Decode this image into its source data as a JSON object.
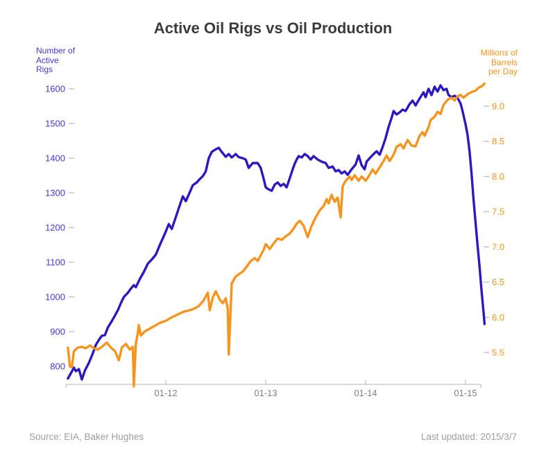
{
  "title": "Active Oil Rigs vs Oil Production",
  "footer": {
    "source": "Source: EIA, Baker Hughes",
    "last_updated": "Last updated: 2015/3/7"
  },
  "left_axis": {
    "label_lines": [
      "Number of",
      "Active",
      "Rigs"
    ],
    "text_color": "#4736d8",
    "ticks": [
      {
        "label": "800",
        "value": 800
      },
      {
        "label": "900",
        "value": 900
      },
      {
        "label": "1000",
        "value": 1000
      },
      {
        "label": "1100",
        "value": 1100
      },
      {
        "label": "1200",
        "value": 1200
      },
      {
        "label": "1300",
        "value": 1300
      },
      {
        "label": "1400",
        "value": 1400
      },
      {
        "label": "1500",
        "value": 1500
      },
      {
        "label": "1600",
        "value": 1600
      }
    ]
  },
  "right_axis": {
    "label_lines": [
      "Millions of",
      "Barrels",
      "per Day"
    ],
    "text_color": "#f7941e",
    "ticks": [
      {
        "label": "5.5",
        "value": 5.5
      },
      {
        "label": "6.0",
        "value": 6.0
      },
      {
        "label": "6.5",
        "value": 6.5
      },
      {
        "label": "7.0",
        "value": 7.0
      },
      {
        "label": "7.5",
        "value": 7.5
      },
      {
        "label": "8.0",
        "value": 8.0
      },
      {
        "label": "8.5",
        "value": 8.5
      },
      {
        "label": "9.0",
        "value": 9.0
      }
    ]
  },
  "x_axis": {
    "text_color": "#7f7f7f",
    "line_color": "#c2c2c2",
    "ticks": [
      {
        "label": "01-12",
        "year": 2012
      },
      {
        "label": "01-13",
        "year": 2013
      },
      {
        "label": "01-14",
        "year": 2014
      },
      {
        "label": "01-15",
        "year": 2015
      }
    ]
  },
  "chart_data": {
    "type": "line",
    "title": "Active Oil Rigs vs Oil Production",
    "x_unit": "decimal_year",
    "x_range": [
      2011.0,
      2015.2
    ],
    "grid": false,
    "legend_position": "none",
    "series": [
      {
        "name": "Number of Active Rigs",
        "axis": "left",
        "color": "#2c17c0",
        "ylim": [
          800,
          1600
        ],
        "points": [
          [
            2011.02,
            765
          ],
          [
            2011.05,
            780
          ],
          [
            2011.08,
            796
          ],
          [
            2011.1,
            786
          ],
          [
            2011.13,
            792
          ],
          [
            2011.16,
            762
          ],
          [
            2011.19,
            788
          ],
          [
            2011.23,
            810
          ],
          [
            2011.27,
            838
          ],
          [
            2011.3,
            862
          ],
          [
            2011.33,
            876
          ],
          [
            2011.36,
            888
          ],
          [
            2011.39,
            890
          ],
          [
            2011.42,
            912
          ],
          [
            2011.45,
            926
          ],
          [
            2011.49,
            946
          ],
          [
            2011.52,
            962
          ],
          [
            2011.55,
            982
          ],
          [
            2011.58,
            1000
          ],
          [
            2011.62,
            1012
          ],
          [
            2011.65,
            1024
          ],
          [
            2011.68,
            1034
          ],
          [
            2011.7,
            1028
          ],
          [
            2011.74,
            1052
          ],
          [
            2011.78,
            1072
          ],
          [
            2011.82,
            1096
          ],
          [
            2011.86,
            1108
          ],
          [
            2011.9,
            1122
          ],
          [
            2011.94,
            1150
          ],
          [
            2011.99,
            1182
          ],
          [
            2012.03,
            1210
          ],
          [
            2012.06,
            1196
          ],
          [
            2012.1,
            1230
          ],
          [
            2012.13,
            1256
          ],
          [
            2012.17,
            1290
          ],
          [
            2012.2,
            1276
          ],
          [
            2012.24,
            1302
          ],
          [
            2012.27,
            1322
          ],
          [
            2012.31,
            1330
          ],
          [
            2012.34,
            1340
          ],
          [
            2012.37,
            1348
          ],
          [
            2012.4,
            1362
          ],
          [
            2012.43,
            1400
          ],
          [
            2012.46,
            1418
          ],
          [
            2012.49,
            1424
          ],
          [
            2012.53,
            1430
          ],
          [
            2012.56,
            1418
          ],
          [
            2012.6,
            1404
          ],
          [
            2012.63,
            1412
          ],
          [
            2012.66,
            1402
          ],
          [
            2012.7,
            1412
          ],
          [
            2012.73,
            1403
          ],
          [
            2012.77,
            1400
          ],
          [
            2012.8,
            1396
          ],
          [
            2012.83,
            1372
          ],
          [
            2012.87,
            1386
          ],
          [
            2012.92,
            1386
          ],
          [
            2012.95,
            1372
          ],
          [
            2012.98,
            1340
          ],
          [
            2013.0,
            1316
          ],
          [
            2013.03,
            1310
          ],
          [
            2013.06,
            1306
          ],
          [
            2013.09,
            1324
          ],
          [
            2013.12,
            1330
          ],
          [
            2013.15,
            1320
          ],
          [
            2013.18,
            1326
          ],
          [
            2013.21,
            1316
          ],
          [
            2013.24,
            1342
          ],
          [
            2013.27,
            1368
          ],
          [
            2013.29,
            1384
          ],
          [
            2013.31,
            1396
          ],
          [
            2013.33,
            1406
          ],
          [
            2013.36,
            1402
          ],
          [
            2013.39,
            1412
          ],
          [
            2013.42,
            1406
          ],
          [
            2013.45,
            1396
          ],
          [
            2013.48,
            1406
          ],
          [
            2013.52,
            1396
          ],
          [
            2013.56,
            1390
          ],
          [
            2013.6,
            1386
          ],
          [
            2013.63,
            1372
          ],
          [
            2013.67,
            1376
          ],
          [
            2013.7,
            1362
          ],
          [
            2013.73,
            1366
          ],
          [
            2013.76,
            1356
          ],
          [
            2013.79,
            1362
          ],
          [
            2013.82,
            1352
          ],
          [
            2013.86,
            1368
          ],
          [
            2013.9,
            1382
          ],
          [
            2013.93,
            1408
          ],
          [
            2013.96,
            1380
          ],
          [
            2013.99,
            1368
          ],
          [
            2014.01,
            1390
          ],
          [
            2014.04,
            1400
          ],
          [
            2014.08,
            1412
          ],
          [
            2014.11,
            1420
          ],
          [
            2014.14,
            1410
          ],
          [
            2014.17,
            1432
          ],
          [
            2014.2,
            1458
          ],
          [
            2014.23,
            1490
          ],
          [
            2014.26,
            1516
          ],
          [
            2014.28,
            1536
          ],
          [
            2014.31,
            1526
          ],
          [
            2014.34,
            1532
          ],
          [
            2014.37,
            1540
          ],
          [
            2014.4,
            1536
          ],
          [
            2014.44,
            1556
          ],
          [
            2014.47,
            1566
          ],
          [
            2014.5,
            1552
          ],
          [
            2014.54,
            1572
          ],
          [
            2014.58,
            1590
          ],
          [
            2014.6,
            1576
          ],
          [
            2014.63,
            1600
          ],
          [
            2014.66,
            1582
          ],
          [
            2014.69,
            1606
          ],
          [
            2014.72,
            1592
          ],
          [
            2014.75,
            1610
          ],
          [
            2014.78,
            1596
          ],
          [
            2014.81,
            1600
          ],
          [
            2014.83,
            1582
          ],
          [
            2014.86,
            1576
          ],
          [
            2014.89,
            1580
          ],
          [
            2014.92,
            1574
          ],
          [
            2014.95,
            1558
          ],
          [
            2014.97,
            1536
          ],
          [
            2015.0,
            1498
          ],
          [
            2015.02,
            1468
          ],
          [
            2015.04,
            1420
          ],
          [
            2015.06,
            1358
          ],
          [
            2015.08,
            1282
          ],
          [
            2015.1,
            1216
          ],
          [
            2015.12,
            1150
          ],
          [
            2015.14,
            1088
          ],
          [
            2015.16,
            1020
          ],
          [
            2015.18,
            958
          ],
          [
            2015.19,
            922
          ]
        ]
      },
      {
        "name": "Millions of Barrels per Day",
        "axis": "right",
        "color": "#f7941e",
        "ylim": [
          5.5,
          9.0
        ],
        "points": [
          [
            2011.02,
            5.57
          ],
          [
            2011.04,
            5.3
          ],
          [
            2011.06,
            5.29
          ],
          [
            2011.08,
            5.52
          ],
          [
            2011.12,
            5.57
          ],
          [
            2011.16,
            5.58
          ],
          [
            2011.2,
            5.56
          ],
          [
            2011.24,
            5.6
          ],
          [
            2011.28,
            5.56
          ],
          [
            2011.32,
            5.54
          ],
          [
            2011.36,
            5.58
          ],
          [
            2011.41,
            5.64
          ],
          [
            2011.45,
            5.57
          ],
          [
            2011.49,
            5.52
          ],
          [
            2011.53,
            5.39
          ],
          [
            2011.56,
            5.57
          ],
          [
            2011.6,
            5.62
          ],
          [
            2011.64,
            5.54
          ],
          [
            2011.67,
            5.58
          ],
          [
            2011.68,
            5.02
          ],
          [
            2011.7,
            5.62
          ],
          [
            2011.72,
            5.78
          ],
          [
            2011.73,
            5.89
          ],
          [
            2011.75,
            5.74
          ],
          [
            2011.79,
            5.8
          ],
          [
            2011.84,
            5.84
          ],
          [
            2011.89,
            5.88
          ],
          [
            2011.94,
            5.92
          ],
          [
            2012.0,
            5.95
          ],
          [
            2012.06,
            6.0
          ],
          [
            2012.12,
            6.04
          ],
          [
            2012.18,
            6.08
          ],
          [
            2012.24,
            6.1
          ],
          [
            2012.28,
            6.12
          ],
          [
            2012.33,
            6.16
          ],
          [
            2012.38,
            6.24
          ],
          [
            2012.42,
            6.35
          ],
          [
            2012.44,
            6.1
          ],
          [
            2012.47,
            6.28
          ],
          [
            2012.5,
            6.37
          ],
          [
            2012.54,
            6.25
          ],
          [
            2012.57,
            6.2
          ],
          [
            2012.6,
            6.27
          ],
          [
            2012.62,
            6.12
          ],
          [
            2012.63,
            5.47
          ],
          [
            2012.66,
            6.48
          ],
          [
            2012.7,
            6.58
          ],
          [
            2012.74,
            6.62
          ],
          [
            2012.77,
            6.65
          ],
          [
            2012.81,
            6.72
          ],
          [
            2012.85,
            6.8
          ],
          [
            2012.89,
            6.84
          ],
          [
            2012.92,
            6.8
          ],
          [
            2012.95,
            6.88
          ],
          [
            2012.98,
            6.96
          ],
          [
            2013.0,
            7.04
          ],
          [
            2013.04,
            6.97
          ],
          [
            2013.08,
            7.05
          ],
          [
            2013.12,
            7.12
          ],
          [
            2013.16,
            7.1
          ],
          [
            2013.19,
            7.14
          ],
          [
            2013.24,
            7.19
          ],
          [
            2013.28,
            7.26
          ],
          [
            2013.31,
            7.33
          ],
          [
            2013.34,
            7.37
          ],
          [
            2013.38,
            7.3
          ],
          [
            2013.42,
            7.14
          ],
          [
            2013.46,
            7.3
          ],
          [
            2013.5,
            7.42
          ],
          [
            2013.54,
            7.52
          ],
          [
            2013.58,
            7.58
          ],
          [
            2013.61,
            7.68
          ],
          [
            2013.63,
            7.62
          ],
          [
            2013.66,
            7.74
          ],
          [
            2013.69,
            7.64
          ],
          [
            2013.72,
            7.7
          ],
          [
            2013.75,
            7.42
          ],
          [
            2013.77,
            7.86
          ],
          [
            2013.8,
            7.94
          ],
          [
            2013.84,
            8.0
          ],
          [
            2013.86,
            7.95
          ],
          [
            2013.89,
            8.02
          ],
          [
            2013.93,
            7.94
          ],
          [
            2013.96,
            8.0
          ],
          [
            2014.0,
            7.94
          ],
          [
            2014.03,
            8.0
          ],
          [
            2014.07,
            8.1
          ],
          [
            2014.1,
            8.04
          ],
          [
            2014.14,
            8.13
          ],
          [
            2014.18,
            8.22
          ],
          [
            2014.21,
            8.3
          ],
          [
            2014.24,
            8.22
          ],
          [
            2014.28,
            8.31
          ],
          [
            2014.31,
            8.42
          ],
          [
            2014.35,
            8.46
          ],
          [
            2014.38,
            8.4
          ],
          [
            2014.42,
            8.52
          ],
          [
            2014.46,
            8.44
          ],
          [
            2014.5,
            8.43
          ],
          [
            2014.54,
            8.58
          ],
          [
            2014.57,
            8.63
          ],
          [
            2014.59,
            8.58
          ],
          [
            2014.63,
            8.7
          ],
          [
            2014.65,
            8.8
          ],
          [
            2014.69,
            8.85
          ],
          [
            2014.72,
            8.92
          ],
          [
            2014.75,
            8.89
          ],
          [
            2014.78,
            9.02
          ],
          [
            2014.82,
            9.09
          ],
          [
            2014.86,
            9.12
          ],
          [
            2014.89,
            9.08
          ],
          [
            2014.92,
            9.14
          ],
          [
            2014.95,
            9.16
          ],
          [
            2014.98,
            9.12
          ],
          [
            2015.02,
            9.17
          ],
          [
            2015.06,
            9.2
          ],
          [
            2015.1,
            9.22
          ],
          [
            2015.13,
            9.26
          ],
          [
            2015.16,
            9.28
          ],
          [
            2015.19,
            9.32
          ]
        ]
      }
    ]
  }
}
